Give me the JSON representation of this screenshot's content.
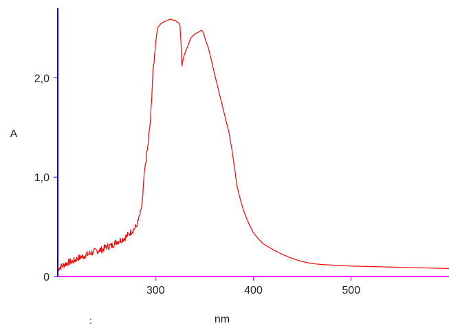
{
  "chart_data": {
    "type": "line",
    "title": "",
    "xlabel": "nm",
    "ylabel": "A",
    "xlim": [
      200,
      600
    ],
    "ylim": [
      0,
      2.7
    ],
    "x_ticks": [
      300,
      400,
      500
    ],
    "x_tick_labels": [
      "300",
      "400",
      "500"
    ],
    "y_ticks": [
      0,
      1,
      2
    ],
    "y_tick_labels": [
      "0",
      "1,0",
      "2,0"
    ],
    "grid": false,
    "legend": "none",
    "series": [
      {
        "color": "#ff0000",
        "x": [
          200,
          205,
          210,
          215,
          220,
          225,
          230,
          235,
          240,
          245,
          250,
          255,
          260,
          265,
          270,
          275,
          280,
          283,
          285,
          287,
          288,
          290,
          292,
          295,
          297,
          300,
          302,
          305,
          308,
          310,
          315,
          318,
          320,
          322,
          324,
          325,
          326,
          327,
          328,
          330,
          333,
          336,
          340,
          344,
          347,
          349,
          351,
          354,
          357,
          360,
          365,
          370,
          375,
          378,
          381,
          383,
          386,
          390,
          395,
          400,
          405,
          410,
          415,
          420,
          430,
          440,
          450,
          460,
          470,
          480,
          490,
          500,
          520,
          540,
          560,
          580,
          600
        ],
        "y": [
          0.08,
          0.11,
          0.14,
          0.15,
          0.18,
          0.2,
          0.22,
          0.24,
          0.26,
          0.27,
          0.3,
          0.31,
          0.35,
          0.37,
          0.4,
          0.45,
          0.5,
          0.58,
          0.65,
          0.8,
          0.98,
          1.15,
          1.3,
          1.6,
          2.0,
          2.35,
          2.5,
          2.54,
          2.56,
          2.57,
          2.59,
          2.58,
          2.58,
          2.56,
          2.55,
          2.52,
          2.35,
          2.12,
          2.18,
          2.25,
          2.32,
          2.4,
          2.44,
          2.46,
          2.48,
          2.45,
          2.38,
          2.3,
          2.18,
          2.05,
          1.85,
          1.65,
          1.45,
          1.28,
          1.08,
          0.92,
          0.8,
          0.66,
          0.54,
          0.44,
          0.38,
          0.33,
          0.3,
          0.27,
          0.22,
          0.18,
          0.15,
          0.13,
          0.12,
          0.115,
          0.11,
          0.105,
          0.1,
          0.095,
          0.09,
          0.085,
          0.08
        ]
      }
    ],
    "stray_mark": ":"
  },
  "colors": {
    "y_axis": "#0000ff",
    "x_axis": "#ff00ff",
    "series": "#ff0000"
  }
}
